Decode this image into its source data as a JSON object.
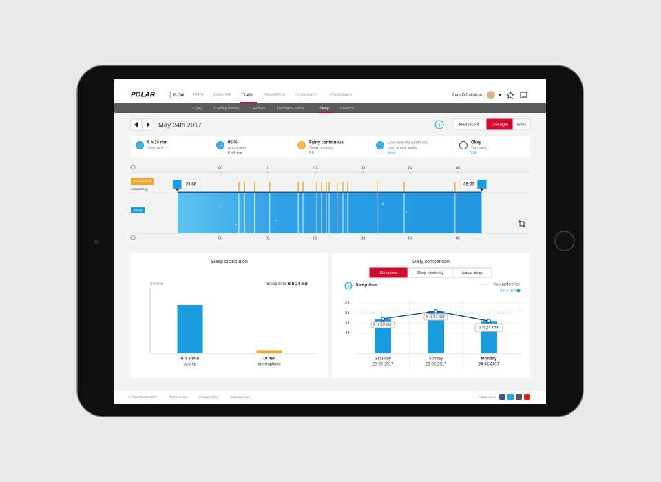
{
  "nav": {
    "logo": "POLAR",
    "product": "FLOW",
    "items": [
      "FEED",
      "EXPLORE",
      "DIARY",
      "PROGRESS",
      "COMMUNITY",
      "PROGRAMS"
    ],
    "active": 2,
    "user": "Joan O'Callahan"
  },
  "subnav": {
    "items": [
      "Diary",
      "Training history",
      "Activity",
      "Recovery status",
      "Sleep",
      "Balance"
    ],
    "active": 4
  },
  "date": "May 24th 2017",
  "views": {
    "items": [
      "Most recent",
      "One night",
      "Week"
    ],
    "active": 1
  },
  "summary": [
    {
      "value": "6 h 24 min",
      "label": "Sleep time"
    },
    {
      "value": "95 %",
      "label": "Actual sleep",
      "detail": "6 h 5 min"
    },
    {
      "value": "Fairly continuous",
      "label": "Sleep continuity",
      "detail": "3.5"
    },
    {
      "value": "Less sleep than preferred,",
      "label": "good overall quality",
      "detail": "More"
    },
    {
      "value": "Okay",
      "label": "Your rating",
      "detail": "Edit"
    }
  ],
  "timeline": {
    "xlim": [
      -1.884,
      6.522
    ],
    "ticks": [
      {
        "value": 0,
        "label": "00"
      },
      {
        "value": 1,
        "label": "01"
      },
      {
        "value": 2,
        "label": "02"
      },
      {
        "value": 3,
        "label": "03"
      },
      {
        "value": 4,
        "label": "04"
      },
      {
        "value": 5,
        "label": "05"
      }
    ],
    "start": {
      "value": -0.9,
      "label": "23:06"
    },
    "end": {
      "value": 5.5,
      "label": "05:30"
    },
    "rows": [
      "Interruptions",
      "Actual sleep",
      "Asleep"
    ],
    "interruptions": [
      0.39,
      0.51,
      0.72,
      1.04,
      1.64,
      1.74,
      2.03,
      2.13,
      2.23,
      2.29,
      2.46,
      2.58,
      2.68,
      3.3,
      3.87,
      4.94
    ],
    "color": "#f5a623",
    "sleep_color": "#2a9de6"
  },
  "distribution": {
    "title": "Sleep distribution",
    "axis_label": "Duration",
    "total_label": "Sleep time",
    "total": "6 h 24 min",
    "categories": [
      "Asleep",
      "Interruptions"
    ],
    "values": [
      365,
      19
    ],
    "value_labels": [
      "6 h 5 min",
      "19 min"
    ],
    "colors": [
      "#1a9be0",
      "#f5a623"
    ],
    "ylim": [
      0,
      495
    ]
  },
  "comparison": {
    "title": "Daily comparison",
    "tabs": [
      "Sleep time",
      "Sleep continuity",
      "Actual sleep"
    ],
    "active": 0,
    "subtitle": "Sleep time",
    "preference_label": "Your preference",
    "preference": {
      "value": 8,
      "label": "8 h 0 min"
    },
    "days": [
      "Saturday",
      "Sunday",
      "Monday"
    ],
    "dates": [
      "22-05-2017",
      "23-05-2017",
      "24-05-2017"
    ],
    "values": [
      6.833,
      8.35,
      6.4
    ],
    "value_labels": [
      "6 h 50 min",
      "8 h 21 min",
      "6 h 24 min"
    ],
    "ylim": [
      0,
      10.4
    ],
    "yticks": [
      {
        "value": 10,
        "label": "10 h"
      },
      {
        "value": 8,
        "label": "8 h"
      },
      {
        "value": 6,
        "label": "6 h"
      },
      {
        "value": 4,
        "label": "4 h"
      }
    ],
    "color": "#1a9be0",
    "line_color": "#1c4f80"
  },
  "footer": {
    "copyright": "© Polar Electro 2017",
    "links": [
      "Terms of Use",
      "Privacy Policy",
      "Customer care"
    ],
    "follow": "Follow us on"
  }
}
